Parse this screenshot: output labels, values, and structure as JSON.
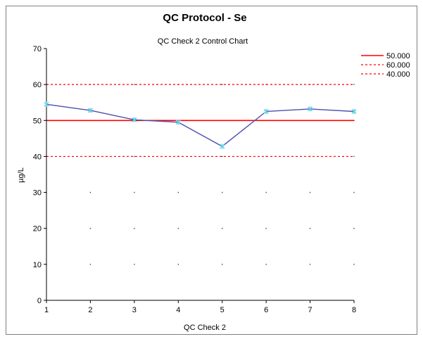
{
  "chart_data": {
    "type": "line",
    "title": "QC Protocol - Se",
    "subtitle": "QC Check 2 Control Chart",
    "xlabel": "QC Check 2",
    "ylabel": "µg/L",
    "x": [
      1,
      2,
      3,
      4,
      5,
      6,
      7,
      8
    ],
    "xlim": [
      1,
      8
    ],
    "ylim": [
      0,
      70
    ],
    "yticks": [
      0,
      10,
      20,
      30,
      40,
      50,
      60,
      70
    ],
    "series": [
      {
        "values": [
          54.5,
          52.8,
          50.2,
          49.5,
          42.8,
          52.5,
          53.2,
          52.5
        ],
        "color": "#4b50b0",
        "marker_color": "#67d4e6"
      }
    ],
    "reference_lines": [
      {
        "name": "50.000",
        "value": 50,
        "style": "solid",
        "color": "#ff0000"
      },
      {
        "name": "60.000",
        "value": 60,
        "style": "dashed",
        "color": "#ff0000"
      },
      {
        "name": "40.000",
        "value": 40,
        "style": "dashed",
        "color": "#ff0000"
      }
    ],
    "legend_position": "top-right",
    "grid": "dotted"
  }
}
